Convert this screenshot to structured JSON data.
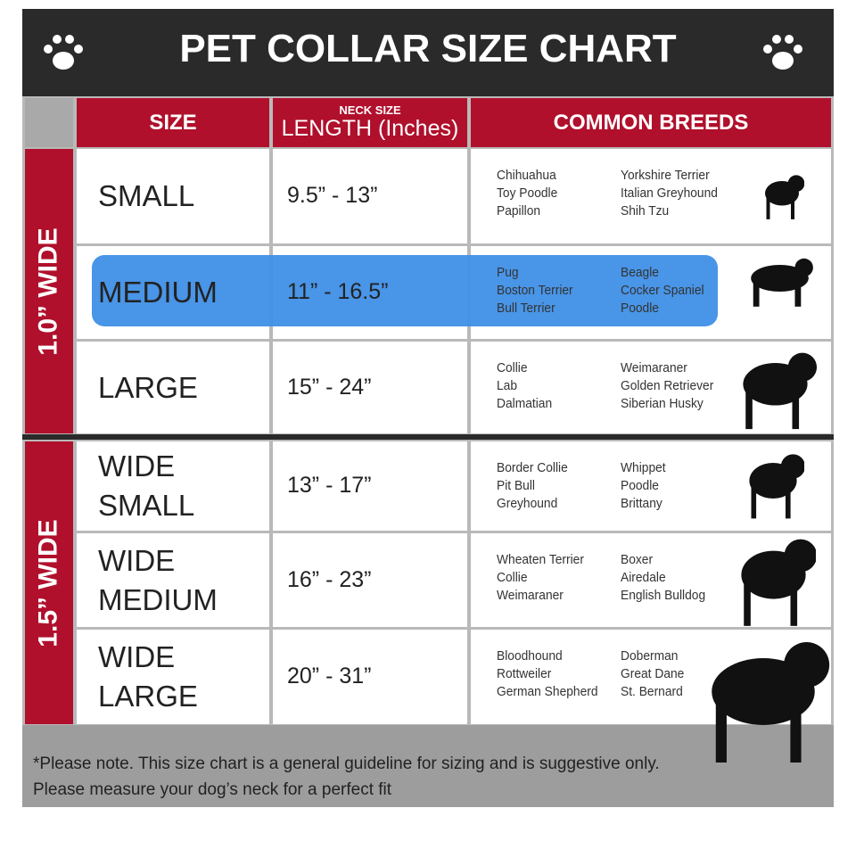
{
  "header": {
    "title": "PET COLLAR SIZE CHART"
  },
  "table": {
    "columns": {
      "size": "SIZE",
      "length_small": "NECK SIZE",
      "length": "LENGTH (Inches)",
      "breeds": "COMMON BREEDS"
    },
    "groups": [
      "1.0” WIDE",
      "1.5” WIDE"
    ],
    "rows": [
      {
        "size": "SMALL",
        "length": "9.5” - 13”",
        "breeds_1": [
          "Chihuahua",
          "Toy Poodle",
          "Papillon"
        ],
        "breeds_2": [
          "Yorkshire Terrier",
          "Italian Greyhound",
          "Shih Tzu"
        ]
      },
      {
        "size": "MEDIUM",
        "length": "11” - 16.5”",
        "breeds_1": [
          "Pug",
          "Boston Terrier",
          "Bull Terrier"
        ],
        "breeds_2": [
          "Beagle",
          "Cocker Spaniel",
          "Poodle"
        ]
      },
      {
        "size": "LARGE",
        "length": "15” - 24”",
        "breeds_1": [
          "Collie",
          "Lab",
          "Dalmatian"
        ],
        "breeds_2": [
          "Weimaraner",
          "Golden Retriever",
          "Siberian Husky"
        ]
      },
      {
        "size": "WIDE SMALL",
        "length": "13” - 17”",
        "breeds_1": [
          "Border Collie",
          "Pit Bull",
          "Greyhound"
        ],
        "breeds_2": [
          "Whippet",
          "Poodle",
          "Brittany"
        ]
      },
      {
        "size": "WIDE MEDIUM",
        "length": "16” - 23”",
        "breeds_1": [
          "Wheaten Terrier",
          "Collie",
          "Weimaraner"
        ],
        "breeds_2": [
          "Boxer",
          "Airedale",
          "English Bulldog"
        ]
      },
      {
        "size": "WIDE LARGE",
        "length": "20” - 31”",
        "breeds_1": [
          "Bloodhound",
          "Rottweiler",
          "German Shepherd"
        ],
        "breeds_2": [
          "Doberman",
          "Great Dane",
          "St. Bernard"
        ]
      }
    ]
  },
  "footer": {
    "line_1": "*Please note. This size chart is a general guideline for sizing and is suggestive only.",
    "line_2": "Please measure your dog’s neck for a perfect fit"
  }
}
